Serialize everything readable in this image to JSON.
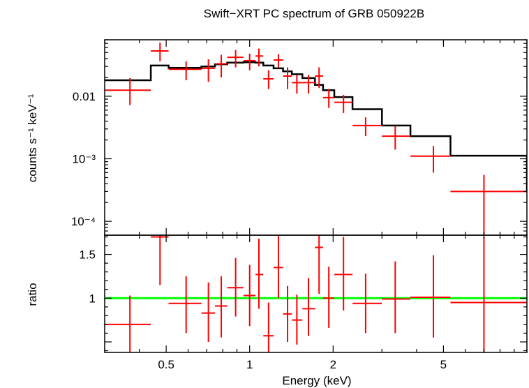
{
  "chart_data": [
    {
      "type": "scatter",
      "panel": "spectrum",
      "title": "Swift−XRT PC spectrum of GRB 050922B",
      "ylabel": "counts s⁻¹ keV⁻¹",
      "xlabel": "",
      "xscale": "log",
      "yscale": "log",
      "xlim": [
        0.3,
        10
      ],
      "ylim": [
        6e-05,
        0.08
      ],
      "y_ticks": [
        {
          "value": 0.01,
          "label": "0.01"
        },
        {
          "value": 0.001,
          "label": "10⁻³"
        },
        {
          "value": 0.0001,
          "label": "10⁻⁴"
        }
      ],
      "colors": {
        "data": "#ff0000",
        "model": "#000000"
      },
      "series": [
        {
          "kind": "data-with-errors",
          "points": [
            {
              "xlo": 0.3,
              "xhi": 0.44,
              "x": 0.37,
              "y": 0.0125,
              "ylo": 0.0072,
              "yhi": 0.0195
            },
            {
              "xlo": 0.44,
              "xhi": 0.51,
              "x": 0.475,
              "y": 0.053,
              "ylo": 0.036,
              "yhi": 0.072
            },
            {
              "xlo": 0.51,
              "xhi": 0.67,
              "x": 0.59,
              "y": 0.027,
              "ylo": 0.018,
              "yhi": 0.036
            },
            {
              "xlo": 0.67,
              "xhi": 0.75,
              "x": 0.71,
              "y": 0.028,
              "ylo": 0.017,
              "yhi": 0.039
            },
            {
              "xlo": 0.75,
              "xhi": 0.83,
              "x": 0.79,
              "y": 0.033,
              "ylo": 0.02,
              "yhi": 0.046
            },
            {
              "xlo": 0.83,
              "xhi": 0.95,
              "x": 0.89,
              "y": 0.042,
              "ylo": 0.029,
              "yhi": 0.055
            },
            {
              "xlo": 0.95,
              "xhi": 1.05,
              "x": 1.0,
              "y": 0.037,
              "ylo": 0.026,
              "yhi": 0.048
            },
            {
              "xlo": 1.05,
              "xhi": 1.12,
              "x": 1.08,
              "y": 0.044,
              "ylo": 0.03,
              "yhi": 0.058
            },
            {
              "xlo": 1.12,
              "xhi": 1.22,
              "x": 1.17,
              "y": 0.019,
              "ylo": 0.013,
              "yhi": 0.026
            },
            {
              "xlo": 1.22,
              "xhi": 1.32,
              "x": 1.27,
              "y": 0.038,
              "ylo": 0.029,
              "yhi": 0.047
            },
            {
              "xlo": 1.32,
              "xhi": 1.42,
              "x": 1.37,
              "y": 0.021,
              "ylo": 0.013,
              "yhi": 0.029
            },
            {
              "xlo": 1.42,
              "xhi": 1.55,
              "x": 1.48,
              "y": 0.0165,
              "ylo": 0.011,
              "yhi": 0.022
            },
            {
              "xlo": 1.55,
              "xhi": 1.72,
              "x": 1.63,
              "y": 0.0165,
              "ylo": 0.011,
              "yhi": 0.022
            },
            {
              "xlo": 1.72,
              "xhi": 1.84,
              "x": 1.78,
              "y": 0.021,
              "ylo": 0.0135,
              "yhi": 0.029
            },
            {
              "xlo": 1.84,
              "xhi": 2.02,
              "x": 1.93,
              "y": 0.0095,
              "ylo": 0.0065,
              "yhi": 0.013
            },
            {
              "xlo": 2.02,
              "xhi": 2.35,
              "x": 2.18,
              "y": 0.008,
              "ylo": 0.0054,
              "yhi": 0.0105
            },
            {
              "xlo": 2.35,
              "xhi": 3.0,
              "x": 2.62,
              "y": 0.0034,
              "ylo": 0.0023,
              "yhi": 0.0046
            },
            {
              "xlo": 3.0,
              "xhi": 3.8,
              "x": 3.35,
              "y": 0.0023,
              "ylo": 0.0014,
              "yhi": 0.0033
            },
            {
              "xlo": 3.8,
              "xhi": 5.3,
              "x": 4.6,
              "y": 0.0011,
              "ylo": 0.0006,
              "yhi": 0.0016
            },
            {
              "xlo": 5.3,
              "xhi": 10.0,
              "x": 7.0,
              "y": 0.0003,
              "ylo": 5e-05,
              "yhi": 0.00055
            }
          ]
        },
        {
          "kind": "model-step",
          "edges": [
            0.3,
            0.44,
            0.51,
            0.67,
            0.75,
            0.83,
            0.95,
            1.05,
            1.12,
            1.22,
            1.32,
            1.42,
            1.55,
            1.72,
            1.84,
            2.02,
            2.35,
            3.0,
            3.8,
            5.3,
            10.0
          ],
          "values": [
            0.018,
            0.031,
            0.0285,
            0.03,
            0.0325,
            0.0345,
            0.035,
            0.0345,
            0.031,
            0.028,
            0.025,
            0.0225,
            0.0195,
            0.0152,
            0.0125,
            0.0097,
            0.0062,
            0.0034,
            0.0023,
            0.00112,
            0.0003
          ]
        }
      ]
    },
    {
      "type": "scatter",
      "panel": "ratio",
      "title": "",
      "ylabel": "ratio",
      "xlabel": "Energy (keV)",
      "xscale": "log",
      "yscale": "linear",
      "xlim": [
        0.3,
        10
      ],
      "ylim": [
        0.38,
        1.72
      ],
      "x_ticks": [
        {
          "value": 0.5,
          "label": "0.5"
        },
        {
          "value": 1,
          "label": "1"
        },
        {
          "value": 2,
          "label": "2"
        },
        {
          "value": 5,
          "label": "5"
        }
      ],
      "y_ticks": [
        {
          "value": 1,
          "label": "1"
        },
        {
          "value": 1.5,
          "label": "1.5"
        }
      ],
      "reference_line": 1.0,
      "colors": {
        "data": "#ff0000",
        "reference": "#00ff00"
      },
      "series": [
        {
          "kind": "data-with-errors",
          "points": [
            {
              "xlo": 0.3,
              "xhi": 0.44,
              "x": 0.37,
              "y": 0.7,
              "ylo": 0.38,
              "yhi": 1.03
            },
            {
              "xlo": 0.44,
              "xhi": 0.51,
              "x": 0.475,
              "y": 1.7,
              "ylo": 1.15,
              "yhi": 1.72
            },
            {
              "xlo": 0.51,
              "xhi": 0.67,
              "x": 0.59,
              "y": 0.94,
              "ylo": 0.6,
              "yhi": 1.25
            },
            {
              "xlo": 0.67,
              "xhi": 0.75,
              "x": 0.71,
              "y": 0.83,
              "ylo": 0.5,
              "yhi": 1.18
            },
            {
              "xlo": 0.75,
              "xhi": 0.83,
              "x": 0.79,
              "y": 0.91,
              "ylo": 0.55,
              "yhi": 1.25
            },
            {
              "xlo": 0.83,
              "xhi": 0.95,
              "x": 0.89,
              "y": 1.12,
              "ylo": 0.79,
              "yhi": 1.46
            },
            {
              "xlo": 0.95,
              "xhi": 1.05,
              "x": 1.0,
              "y": 1.03,
              "ylo": 0.68,
              "yhi": 1.38
            },
            {
              "xlo": 1.05,
              "xhi": 1.12,
              "x": 1.08,
              "y": 1.27,
              "ylo": 0.88,
              "yhi": 1.68
            },
            {
              "xlo": 1.12,
              "xhi": 1.22,
              "x": 1.17,
              "y": 0.57,
              "ylo": 0.38,
              "yhi": 0.95
            },
            {
              "xlo": 1.22,
              "xhi": 1.32,
              "x": 1.27,
              "y": 1.35,
              "ylo": 1.0,
              "yhi": 1.72
            },
            {
              "xlo": 1.32,
              "xhi": 1.42,
              "x": 1.37,
              "y": 0.82,
              "ylo": 0.5,
              "yhi": 1.14
            },
            {
              "xlo": 1.42,
              "xhi": 1.55,
              "x": 1.48,
              "y": 0.75,
              "ylo": 0.47,
              "yhi": 1.04
            },
            {
              "xlo": 1.55,
              "xhi": 1.72,
              "x": 1.63,
              "y": 0.88,
              "ylo": 0.57,
              "yhi": 1.23
            },
            {
              "xlo": 1.72,
              "xhi": 1.84,
              "x": 1.78,
              "y": 1.58,
              "ylo": 1.05,
              "yhi": 1.72
            },
            {
              "xlo": 1.84,
              "xhi": 2.02,
              "x": 1.93,
              "y": 1.0,
              "ylo": 0.66,
              "yhi": 1.36
            },
            {
              "xlo": 2.02,
              "xhi": 2.35,
              "x": 2.18,
              "y": 1.27,
              "ylo": 0.86,
              "yhi": 1.7
            },
            {
              "xlo": 2.35,
              "xhi": 3.0,
              "x": 2.62,
              "y": 0.94,
              "ylo": 0.6,
              "yhi": 1.28
            },
            {
              "xlo": 3.0,
              "xhi": 3.8,
              "x": 3.35,
              "y": 0.99,
              "ylo": 0.6,
              "yhi": 1.42
            },
            {
              "xlo": 3.8,
              "xhi": 5.3,
              "x": 4.6,
              "y": 1.01,
              "ylo": 0.55,
              "yhi": 1.49
            },
            {
              "xlo": 5.3,
              "xhi": 10.0,
              "x": 7.0,
              "y": 0.95,
              "ylo": 0.38,
              "yhi": 1.7
            }
          ]
        }
      ]
    }
  ]
}
